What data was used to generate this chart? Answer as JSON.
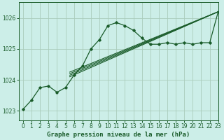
{
  "title": "Graphe pression niveau de la mer (hPa)",
  "background_color": "#cceee8",
  "grid_color": "#aaccbb",
  "line_color": "#1a5c2a",
  "xlim": [
    -0.5,
    23
  ],
  "ylim": [
    1022.7,
    1026.5
  ],
  "yticks": [
    1023,
    1024,
    1025,
    1026
  ],
  "xticks": [
    0,
    1,
    2,
    3,
    4,
    5,
    6,
    7,
    8,
    9,
    10,
    11,
    12,
    13,
    14,
    15,
    16,
    17,
    18,
    19,
    20,
    21,
    22,
    23
  ],
  "main_line": [
    [
      0,
      1023.05
    ],
    [
      1,
      1023.35
    ],
    [
      2,
      1023.75
    ],
    [
      3,
      1023.8
    ],
    [
      4,
      1023.6
    ],
    [
      5,
      1023.75
    ],
    [
      6,
      1024.15
    ],
    [
      7,
      1024.45
    ],
    [
      8,
      1025.0
    ],
    [
      9,
      1025.3
    ],
    [
      10,
      1025.75
    ],
    [
      11,
      1025.85
    ],
    [
      12,
      1025.75
    ],
    [
      13,
      1025.6
    ],
    [
      14,
      1025.35
    ],
    [
      15,
      1025.15
    ],
    [
      16,
      1025.15
    ],
    [
      17,
      1025.2
    ],
    [
      18,
      1025.15
    ],
    [
      19,
      1025.2
    ],
    [
      20,
      1025.15
    ],
    [
      21,
      1025.2
    ],
    [
      22,
      1025.2
    ],
    [
      23,
      1026.2
    ]
  ],
  "trend_lines": [
    [
      [
        5.5,
        1024.1
      ],
      [
        23,
        1026.2
      ]
    ],
    [
      [
        5.5,
        1024.15
      ],
      [
        23,
        1026.2
      ]
    ],
    [
      [
        5.5,
        1024.2
      ],
      [
        23,
        1026.2
      ]
    ],
    [
      [
        5.5,
        1024.25
      ],
      [
        23,
        1026.2
      ]
    ]
  ],
  "ylabel_fontsize": 6.5,
  "tick_fontsize": 5.5
}
